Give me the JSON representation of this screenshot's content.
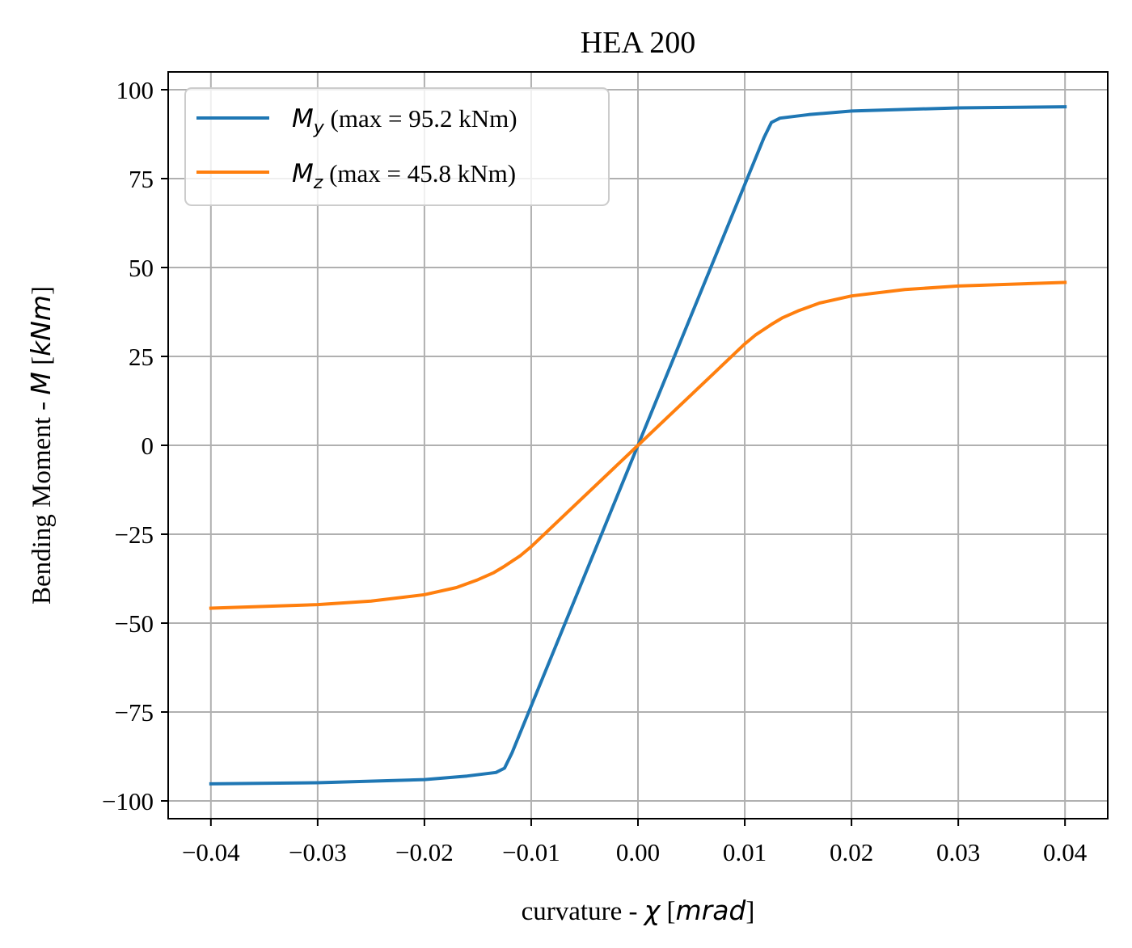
{
  "chart_data": {
    "type": "line",
    "title": "HEA 200",
    "xlabel": {
      "prefix": "curvature - ",
      "symbol": "χ",
      "unit_open": " [",
      "unit": "mrad",
      "unit_close": "]"
    },
    "ylabel": {
      "prefix": "Bending Moment - ",
      "symbol": "M",
      "unit_open": " [",
      "unit": "kNm",
      "unit_close": "]"
    },
    "xlim": [
      -0.044,
      0.044
    ],
    "ylim": [
      -105,
      105
    ],
    "xticks": [
      -0.04,
      -0.03,
      -0.02,
      -0.01,
      0.0,
      0.01,
      0.02,
      0.03,
      0.04
    ],
    "xtick_labels": [
      "−0.04",
      "−0.03",
      "−0.02",
      "−0.01",
      "0.00",
      "0.01",
      "0.02",
      "0.03",
      "0.04"
    ],
    "yticks": [
      100,
      75,
      50,
      25,
      0,
      -25,
      -50,
      -75,
      -100
    ],
    "ytick_labels": [
      "100",
      "75",
      "50",
      "25",
      "0",
      "−25",
      "−50",
      "−75",
      "−100"
    ],
    "grid": true,
    "legend": "top-left",
    "series": [
      {
        "name_symbol": "M",
        "name_sub": "y",
        "name_rest": " (max = 95.2 kNm)",
        "color": "#1f77b4",
        "x": [
          -0.04,
          -0.03,
          -0.02,
          -0.016,
          -0.0133,
          -0.0125,
          -0.0118,
          0.0,
          0.0118,
          0.0125,
          0.0133,
          0.016,
          0.02,
          0.03,
          0.04
        ],
        "y": [
          -95.2,
          -94.9,
          -94.0,
          -93.0,
          -92.0,
          -90.8,
          -86.5,
          0.0,
          86.5,
          90.8,
          92.0,
          93.0,
          94.0,
          94.9,
          95.2
        ]
      },
      {
        "name_symbol": "M",
        "name_sub": "z",
        "name_rest": " (max = 45.8 kNm)",
        "color": "#ff7f0e",
        "x": [
          -0.04,
          -0.03,
          -0.025,
          -0.02,
          -0.017,
          -0.015,
          -0.0135,
          -0.0125,
          -0.011,
          -0.01,
          0.0,
          0.01,
          0.011,
          0.0125,
          0.0135,
          0.015,
          0.017,
          0.02,
          0.025,
          0.03,
          0.04
        ],
        "y": [
          -45.8,
          -44.8,
          -43.8,
          -42.0,
          -40.0,
          -37.8,
          -35.8,
          -34.0,
          -31.0,
          -28.5,
          0.0,
          28.5,
          31.0,
          34.0,
          35.8,
          37.8,
          40.0,
          42.0,
          43.8,
          44.8,
          45.8
        ]
      }
    ]
  }
}
